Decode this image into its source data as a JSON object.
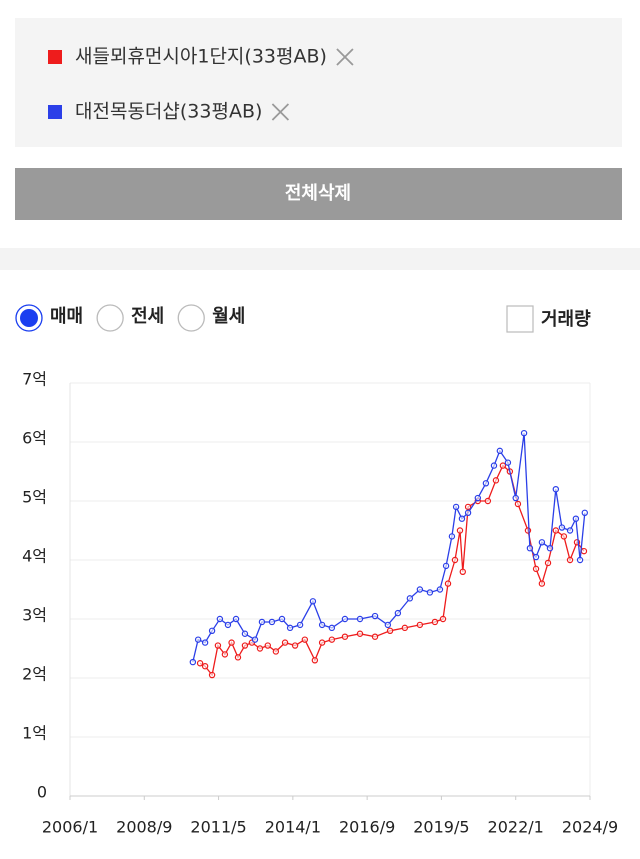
{
  "delete_all": "전체삭제",
  "tabs": {
    "options": [
      "매매",
      "전세",
      "월세"
    ],
    "selected": 0
  },
  "volume_toggle": "거래량",
  "chart_data": {
    "type": "line",
    "series": [
      {
        "name": "새들뫼휴먼시아1단지(33평AB)",
        "color": "#ee1c1c",
        "x": [
          2010.67,
          2010.85,
          2011.1,
          2011.31,
          2011.56,
          2011.8,
          2012.03,
          2012.28,
          2012.53,
          2012.82,
          2013.1,
          2013.39,
          2013.72,
          2014.08,
          2014.43,
          2014.79,
          2015.05,
          2015.4,
          2015.87,
          2016.41,
          2016.95,
          2017.49,
          2018.02,
          2018.56,
          2019.1,
          2019.39,
          2019.57,
          2019.82,
          2020.0,
          2020.1,
          2020.29,
          2020.64,
          2021.0,
          2021.29,
          2021.54,
          2021.79,
          2022.08,
          2022.44,
          2022.73,
          2022.94,
          2023.16,
          2023.44,
          2023.73,
          2023.95,
          2024.2,
          2024.45
        ],
        "values": [
          2.25,
          2.2,
          2.05,
          2.55,
          2.4,
          2.6,
          2.35,
          2.55,
          2.6,
          2.5,
          2.55,
          2.45,
          2.6,
          2.55,
          2.65,
          2.3,
          2.6,
          2.65,
          2.7,
          2.75,
          2.7,
          2.8,
          2.85,
          2.9,
          2.95,
          3.0,
          3.6,
          4.0,
          4.5,
          3.8,
          4.9,
          5.0,
          5.0,
          5.35,
          5.6,
          5.5,
          4.95,
          4.5,
          3.85,
          3.6,
          3.95,
          4.5,
          4.4,
          4.0,
          4.3,
          4.15
        ]
      },
      {
        "name": "대전목동더샵(33평AB)",
        "color": "#2b3fe8",
        "x": [
          2010.41,
          2010.6,
          2010.85,
          2011.1,
          2011.38,
          2011.67,
          2011.96,
          2012.28,
          2012.64,
          2012.89,
          2013.25,
          2013.61,
          2013.9,
          2014.26,
          2014.72,
          2015.05,
          2015.4,
          2015.87,
          2016.41,
          2016.95,
          2017.41,
          2017.77,
          2018.2,
          2018.56,
          2018.92,
          2019.28,
          2019.5,
          2019.71,
          2019.86,
          2020.07,
          2020.29,
          2020.64,
          2020.93,
          2021.22,
          2021.43,
          2021.72,
          2022.0,
          2022.3,
          2022.51,
          2022.73,
          2022.94,
          2023.23,
          2023.44,
          2023.66,
          2023.95,
          2024.16,
          2024.31,
          2024.48
        ],
        "values": [
          2.27,
          2.65,
          2.6,
          2.8,
          3.0,
          2.9,
          3.0,
          2.75,
          2.65,
          2.95,
          2.95,
          3.0,
          2.85,
          2.9,
          3.3,
          2.9,
          2.85,
          3.0,
          3.0,
          3.05,
          2.9,
          3.1,
          3.35,
          3.5,
          3.45,
          3.5,
          3.9,
          4.4,
          4.9,
          4.7,
          4.8,
          5.05,
          5.3,
          5.6,
          5.85,
          5.65,
          5.05,
          6.15,
          4.2,
          4.05,
          4.3,
          4.2,
          5.2,
          4.55,
          4.5,
          4.7,
          4.0,
          4.8
        ]
      }
    ],
    "xlim": [
      2006.0,
      2024.667
    ],
    "xticks": [
      {
        "value": 2006.0,
        "label": "2006/1"
      },
      {
        "value": 2008.667,
        "label": "2008/9"
      },
      {
        "value": 2011.333,
        "label": "2011/5"
      },
      {
        "value": 2014.0,
        "label": "2014/1"
      },
      {
        "value": 2016.667,
        "label": "2016/9"
      },
      {
        "value": 2019.333,
        "label": "2019/5"
      },
      {
        "value": 2022.0,
        "label": "2022/1"
      },
      {
        "value": 2024.667,
        "label": "2024/9"
      }
    ],
    "ylim": [
      0,
      7
    ],
    "yticks": [
      0,
      {
        "value": 1,
        "label": "1억"
      },
      {
        "value": 2,
        "label": "2억"
      },
      {
        "value": 3,
        "label": "3억"
      },
      {
        "value": 4,
        "label": "4억"
      },
      {
        "value": 5,
        "label": "5억"
      },
      {
        "value": 6,
        "label": "6억"
      },
      {
        "value": 7,
        "label": "7억"
      }
    ],
    "grid": true
  }
}
